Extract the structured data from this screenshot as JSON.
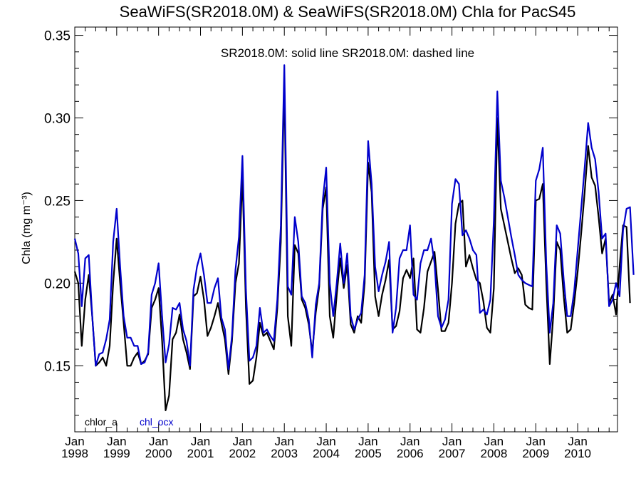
{
  "chart_data": {
    "type": "line",
    "title": "SeaWiFS(SR2018.0M) & SeaWiFS(SR2018.0M)  Chla for PacS45",
    "annotation": "SR2018.0M: solid line   SR2018.0M: dashed line",
    "ylabel": "Chla (mg m⁻³)",
    "xlabel": "",
    "ylim": [
      0.11,
      0.355
    ],
    "xlim": [
      1998.0,
      2010.95
    ],
    "yticks": [
      {
        "value": 0.15,
        "label": "0.15"
      },
      {
        "value": 0.2,
        "label": "0.20"
      },
      {
        "value": 0.25,
        "label": "0.25"
      },
      {
        "value": 0.3,
        "label": "0.30"
      },
      {
        "value": 0.35,
        "label": "0.35"
      }
    ],
    "xticks": [
      {
        "value": 1998,
        "month": "Jan",
        "year": "1998"
      },
      {
        "value": 1999,
        "month": "Jan",
        "year": "1999"
      },
      {
        "value": 2000,
        "month": "Jan",
        "year": "2000"
      },
      {
        "value": 2001,
        "month": "Jan",
        "year": "2001"
      },
      {
        "value": 2002,
        "month": "Jan",
        "year": "2002"
      },
      {
        "value": 2003,
        "month": "Jan",
        "year": "2003"
      },
      {
        "value": 2004,
        "month": "Jan",
        "year": "2004"
      },
      {
        "value": 2005,
        "month": "Jan",
        "year": "2005"
      },
      {
        "value": 2006,
        "month": "Jan",
        "year": "2006"
      },
      {
        "value": 2007,
        "month": "Jan",
        "year": "2007"
      },
      {
        "value": 2008,
        "month": "Jan",
        "year": "2008"
      },
      {
        "value": 2009,
        "month": "Jan",
        "year": "2009"
      },
      {
        "value": 2010,
        "month": "Jan",
        "year": "2010"
      }
    ],
    "grid": false,
    "legend_position": "bottom-left",
    "x_start": 1998.0,
    "x_step": 0.083333,
    "series": [
      {
        "name": "chlor_a",
        "color": "#000000",
        "values": [
          0.207,
          0.2,
          0.162,
          0.19,
          0.205,
          0.18,
          0.15,
          0.152,
          0.155,
          0.15,
          0.162,
          0.2,
          0.227,
          0.2,
          0.176,
          0.15,
          0.15,
          0.155,
          0.158,
          0.151,
          0.153,
          0.157,
          0.185,
          0.19,
          0.197,
          0.165,
          0.123,
          0.132,
          0.166,
          0.17,
          0.181,
          0.166,
          0.158,
          0.148,
          0.192,
          0.194,
          0.204,
          0.19,
          0.168,
          0.173,
          0.18,
          0.188,
          0.176,
          0.166,
          0.145,
          0.165,
          0.2,
          0.212,
          0.265,
          0.185,
          0.139,
          0.141,
          0.155,
          0.176,
          0.168,
          0.17,
          0.165,
          0.16,
          0.185,
          0.225,
          0.322,
          0.18,
          0.162,
          0.223,
          0.218,
          0.19,
          0.185,
          0.175,
          0.158,
          0.182,
          0.198,
          0.245,
          0.258,
          0.18,
          0.167,
          0.193,
          0.215,
          0.197,
          0.211,
          0.175,
          0.17,
          0.18,
          0.176,
          0.2,
          0.273,
          0.255,
          0.192,
          0.18,
          0.193,
          0.202,
          0.214,
          0.172,
          0.174,
          0.183,
          0.203,
          0.208,
          0.203,
          0.215,
          0.172,
          0.17,
          0.185,
          0.207,
          0.213,
          0.219,
          0.196,
          0.171,
          0.171,
          0.176,
          0.2,
          0.236,
          0.248,
          0.25,
          0.21,
          0.217,
          0.209,
          0.202,
          0.2,
          0.189,
          0.173,
          0.17,
          0.197,
          0.3,
          0.245,
          0.235,
          0.225,
          0.215,
          0.206,
          0.209,
          0.205,
          0.187,
          0.185,
          0.184,
          0.25,
          0.251,
          0.26,
          0.2,
          0.151,
          0.18,
          0.225,
          0.22,
          0.192,
          0.17,
          0.172,
          0.188,
          0.207,
          0.23,
          0.255,
          0.283,
          0.264,
          0.259,
          0.24,
          0.218,
          0.227,
          0.188,
          0.193,
          0.181,
          0.21,
          0.235,
          0.234,
          0.188
        ]
      },
      {
        "name": "chl_ocx",
        "color": "#0000cc",
        "values": [
          0.227,
          0.218,
          0.186,
          0.215,
          0.217,
          0.18,
          0.15,
          0.157,
          0.158,
          0.166,
          0.178,
          0.225,
          0.245,
          0.21,
          0.18,
          0.167,
          0.167,
          0.162,
          0.162,
          0.151,
          0.152,
          0.158,
          0.193,
          0.2,
          0.212,
          0.18,
          0.152,
          0.163,
          0.185,
          0.184,
          0.188,
          0.172,
          0.165,
          0.15,
          0.196,
          0.21,
          0.218,
          0.205,
          0.188,
          0.188,
          0.197,
          0.203,
          0.179,
          0.172,
          0.148,
          0.168,
          0.208,
          0.228,
          0.277,
          0.196,
          0.153,
          0.155,
          0.162,
          0.185,
          0.17,
          0.172,
          0.168,
          0.165,
          0.19,
          0.235,
          0.332,
          0.198,
          0.193,
          0.24,
          0.225,
          0.192,
          0.188,
          0.178,
          0.155,
          0.187,
          0.2,
          0.25,
          0.27,
          0.2,
          0.18,
          0.2,
          0.224,
          0.2,
          0.218,
          0.18,
          0.172,
          0.178,
          0.182,
          0.205,
          0.286,
          0.26,
          0.21,
          0.195,
          0.205,
          0.213,
          0.225,
          0.17,
          0.185,
          0.215,
          0.22,
          0.22,
          0.235,
          0.193,
          0.19,
          0.212,
          0.22,
          0.22,
          0.227,
          0.212,
          0.18,
          0.173,
          0.178,
          0.19,
          0.248,
          0.263,
          0.26,
          0.229,
          0.232,
          0.227,
          0.22,
          0.217,
          0.182,
          0.184,
          0.181,
          0.19,
          0.238,
          0.316,
          0.262,
          0.252,
          0.24,
          0.228,
          0.217,
          0.205,
          0.202,
          0.2,
          0.199,
          0.198,
          0.262,
          0.269,
          0.282,
          0.212,
          0.17,
          0.188,
          0.235,
          0.23,
          0.202,
          0.18,
          0.18,
          0.195,
          0.22,
          0.245,
          0.27,
          0.297,
          0.282,
          0.275,
          0.255,
          0.227,
          0.23,
          0.186,
          0.19,
          0.2,
          0.192,
          0.232,
          0.245,
          0.246,
          0.205
        ]
      }
    ]
  }
}
